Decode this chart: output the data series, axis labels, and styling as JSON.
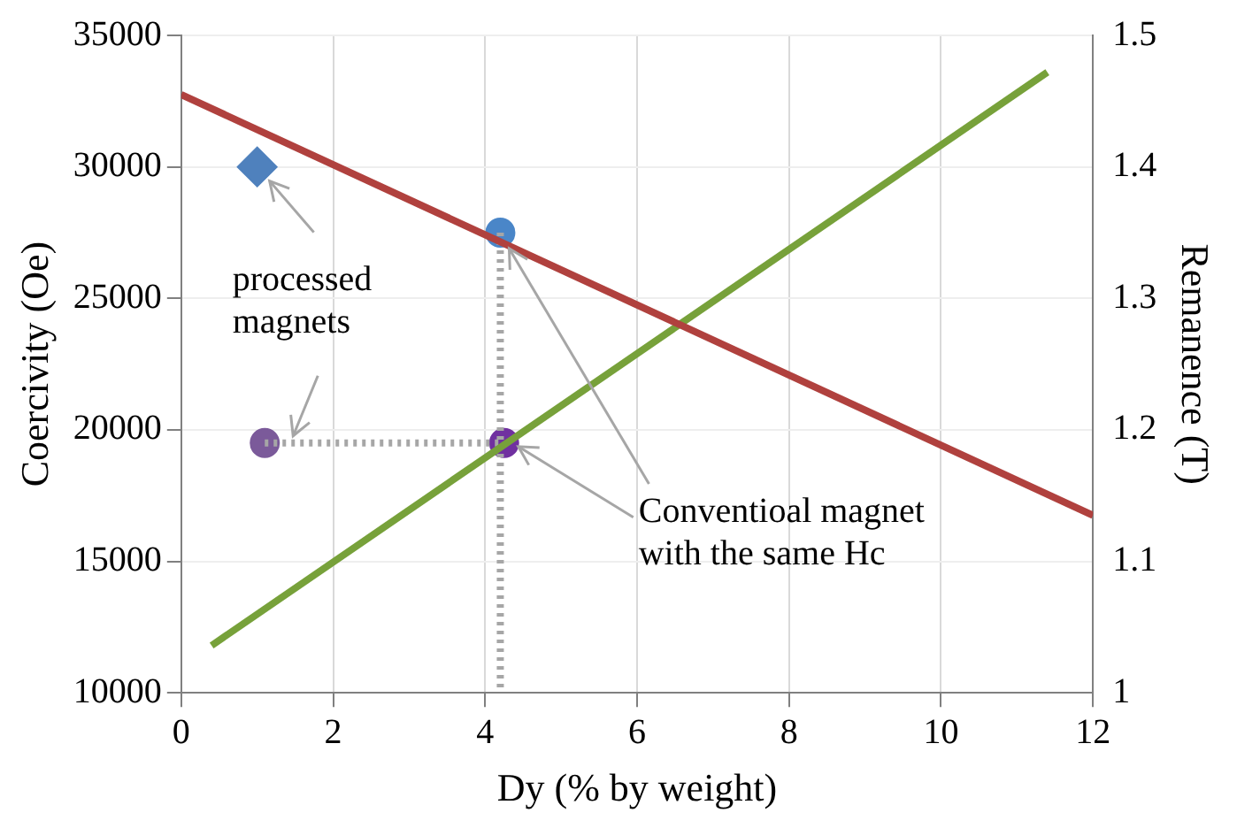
{
  "chart_data": {
    "type": "line",
    "xlabel": "Dy (% by weight)",
    "ylabel": "Coercivity (Oe)",
    "y2label": "Remanence (T)",
    "xlim": [
      0,
      12
    ],
    "xticks": [
      0,
      2,
      4,
      6,
      8,
      10,
      12
    ],
    "ylim": [
      10000,
      35000
    ],
    "yticks": [
      10000,
      15000,
      20000,
      25000,
      30000,
      35000
    ],
    "y2lim": [
      1,
      1.5
    ],
    "y2ticks": [
      1,
      1.1,
      1.2,
      1.3,
      1.4,
      1.5
    ],
    "grid": true,
    "legend": false,
    "annotations": [
      {
        "text": "processed magnets",
        "x": 1,
        "y": 30000
      },
      {
        "text": "Conventioal magnet with the same Hc",
        "x": 4.25,
        "y": 19500
      }
    ],
    "series": [
      {
        "axis": "y2",
        "color": "#b0413e",
        "x": [
          0,
          12
        ],
        "values": [
          1.455,
          1.135
        ],
        "marker": "none",
        "line_style": "solid"
      },
      {
        "color": "#77a13a",
        "x": [
          0.4,
          11.4
        ],
        "values": [
          11800,
          33600
        ],
        "marker": "none",
        "line_style": "solid"
      },
      {
        "color": "#a6a6a6",
        "x": [
          4.2,
          4.2
        ],
        "values": [
          27500,
          10200
        ],
        "marker": "none",
        "line_style": "dotted"
      },
      {
        "color": "#a6a6a6",
        "x": [
          1.1,
          4.2
        ],
        "values": [
          19500,
          19500
        ],
        "marker": "none",
        "line_style": "dotted"
      },
      {
        "type": "scatter",
        "color": "#4f81bd",
        "x": [
          1
        ],
        "values": [
          30000
        ],
        "marker": "diamond"
      },
      {
        "type": "scatter",
        "color": "#4a86c8",
        "x": [
          4.2
        ],
        "values": [
          27500
        ],
        "marker": "circle"
      },
      {
        "type": "scatter",
        "color": "#7030a0",
        "x": [
          1.1,
          4.25
        ],
        "values": [
          19500,
          19500
        ],
        "colors": [
          "#7b5a9a",
          "#7030a0"
        ],
        "marker": "circle"
      }
    ]
  }
}
